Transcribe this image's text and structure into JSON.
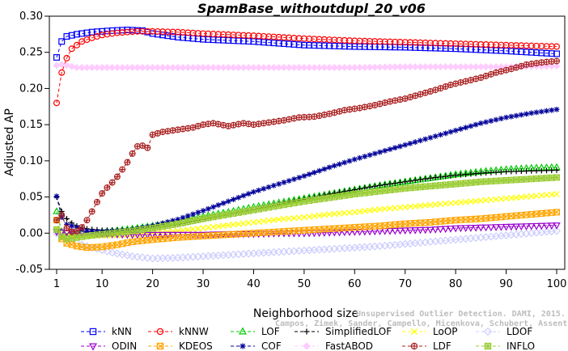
{
  "chart_data": {
    "type": "line",
    "title": "SpamBase_withoutdupl_20_v06",
    "xlabel": "Neighborhood size",
    "ylabel": "Adjusted AP",
    "xlim": [
      1,
      100
    ],
    "ylim": [
      -0.05,
      0.3
    ],
    "xticks": [
      1,
      10,
      20,
      30,
      40,
      50,
      60,
      70,
      80,
      90,
      100
    ],
    "yticks": [
      -0.05,
      0.0,
      0.05,
      0.1,
      0.15,
      0.2,
      0.25,
      0.3
    ],
    "ytick_labels": [
      "-0.05",
      "0.00",
      "0.05",
      "0.10",
      "0.15",
      "0.20",
      "0.25",
      "0.30"
    ],
    "grid": false,
    "legend_position": "bottom",
    "watermark_lines": [
      "Unsupervised Outlier Detection. DAMI, 2015.",
      "Campos, Zimek, Sander, Campello, Micenkova, Schubert, Assent, Houle"
    ],
    "series": [
      {
        "name": "kNN",
        "color": "#0000ff",
        "marker": "square",
        "points": [
          [
            1,
            0.243
          ],
          [
            2,
            0.265
          ],
          [
            3,
            0.272
          ],
          [
            5,
            0.275
          ],
          [
            8,
            0.278
          ],
          [
            12,
            0.28
          ],
          [
            15,
            0.281
          ],
          [
            18,
            0.28
          ],
          [
            20,
            0.276
          ],
          [
            25,
            0.271
          ],
          [
            30,
            0.268
          ],
          [
            40,
            0.265
          ],
          [
            50,
            0.26
          ],
          [
            60,
            0.258
          ],
          [
            70,
            0.257
          ],
          [
            80,
            0.255
          ],
          [
            90,
            0.252
          ],
          [
            100,
            0.248
          ]
        ]
      },
      {
        "name": "kNNW",
        "color": "#ff0000",
        "marker": "circle",
        "points": [
          [
            1,
            0.18
          ],
          [
            2,
            0.222
          ],
          [
            3,
            0.242
          ],
          [
            4,
            0.255
          ],
          [
            6,
            0.265
          ],
          [
            8,
            0.27
          ],
          [
            10,
            0.274
          ],
          [
            13,
            0.277
          ],
          [
            17,
            0.279
          ],
          [
            20,
            0.279
          ],
          [
            25,
            0.278
          ],
          [
            30,
            0.276
          ],
          [
            40,
            0.273
          ],
          [
            50,
            0.269
          ],
          [
            60,
            0.266
          ],
          [
            70,
            0.264
          ],
          [
            80,
            0.262
          ],
          [
            90,
            0.26
          ],
          [
            100,
            0.258
          ]
        ]
      },
      {
        "name": "LOF",
        "color": "#00cc00",
        "marker": "triangle-up",
        "points": [
          [
            1,
            0.03
          ],
          [
            2,
            0.002
          ],
          [
            3,
            -0.005
          ],
          [
            5,
            0.0
          ],
          [
            8,
            0.001
          ],
          [
            12,
            0.003
          ],
          [
            16,
            0.006
          ],
          [
            20,
            0.01
          ],
          [
            25,
            0.016
          ],
          [
            30,
            0.023
          ],
          [
            35,
            0.029
          ],
          [
            40,
            0.036
          ],
          [
            45,
            0.042
          ],
          [
            50,
            0.048
          ],
          [
            55,
            0.054
          ],
          [
            60,
            0.06
          ],
          [
            65,
            0.066
          ],
          [
            70,
            0.071
          ],
          [
            75,
            0.076
          ],
          [
            80,
            0.081
          ],
          [
            85,
            0.085
          ],
          [
            90,
            0.088
          ],
          [
            95,
            0.09
          ],
          [
            100,
            0.091
          ]
        ]
      },
      {
        "name": "SimplifiedLOF",
        "color": "#000000",
        "marker": "plus",
        "points": [
          [
            1,
            0.05
          ],
          [
            2,
            0.03
          ],
          [
            3,
            0.02
          ],
          [
            4,
            0.014
          ],
          [
            5,
            0.01
          ],
          [
            7,
            0.006
          ],
          [
            10,
            0.004
          ],
          [
            15,
            0.004
          ],
          [
            20,
            0.007
          ],
          [
            25,
            0.012
          ],
          [
            30,
            0.019
          ],
          [
            35,
            0.026
          ],
          [
            40,
            0.033
          ],
          [
            45,
            0.04
          ],
          [
            50,
            0.047
          ],
          [
            55,
            0.054
          ],
          [
            60,
            0.06
          ],
          [
            65,
            0.066
          ],
          [
            70,
            0.071
          ],
          [
            75,
            0.076
          ],
          [
            80,
            0.08
          ],
          [
            85,
            0.083
          ],
          [
            90,
            0.085
          ],
          [
            95,
            0.086
          ],
          [
            100,
            0.087
          ]
        ]
      },
      {
        "name": "LoOP",
        "color": "#ffff00",
        "marker": "cross",
        "points": [
          [
            1,
            0.005
          ],
          [
            2,
            0.0
          ],
          [
            3,
            -0.004
          ],
          [
            5,
            -0.005
          ],
          [
            8,
            -0.004
          ],
          [
            12,
            -0.003
          ],
          [
            16,
            -0.002
          ],
          [
            20,
            0.0
          ],
          [
            25,
            0.003
          ],
          [
            30,
            0.007
          ],
          [
            35,
            0.011
          ],
          [
            40,
            0.015
          ],
          [
            45,
            0.019
          ],
          [
            50,
            0.022
          ],
          [
            55,
            0.026
          ],
          [
            60,
            0.029
          ],
          [
            65,
            0.033
          ],
          [
            70,
            0.036
          ],
          [
            75,
            0.039
          ],
          [
            80,
            0.042
          ],
          [
            85,
            0.045
          ],
          [
            90,
            0.048
          ],
          [
            95,
            0.051
          ],
          [
            100,
            0.054
          ]
        ]
      },
      {
        "name": "LDOF",
        "color": "#ccccff",
        "marker": "diamond",
        "points": [
          [
            1,
            0.0
          ],
          [
            3,
            -0.008
          ],
          [
            5,
            -0.014
          ],
          [
            8,
            -0.02
          ],
          [
            12,
            -0.027
          ],
          [
            16,
            -0.032
          ],
          [
            20,
            -0.035
          ],
          [
            25,
            -0.034
          ],
          [
            30,
            -0.032
          ],
          [
            35,
            -0.03
          ],
          [
            40,
            -0.028
          ],
          [
            45,
            -0.026
          ],
          [
            50,
            -0.024
          ],
          [
            55,
            -0.022
          ],
          [
            60,
            -0.02
          ],
          [
            65,
            -0.018
          ],
          [
            70,
            -0.015
          ],
          [
            75,
            -0.012
          ],
          [
            80,
            -0.009
          ],
          [
            85,
            -0.006
          ],
          [
            90,
            -0.003
          ],
          [
            95,
            0.0
          ],
          [
            100,
            0.003
          ]
        ]
      },
      {
        "name": "ODIN",
        "color": "#9900cc",
        "marker": "triangle-down",
        "points": [
          [
            1,
            0.002
          ],
          [
            3,
            0.001
          ],
          [
            6,
            0.0
          ],
          [
            10,
            -0.001
          ],
          [
            15,
            -0.002
          ],
          [
            20,
            -0.002
          ],
          [
            25,
            -0.002
          ],
          [
            30,
            -0.002
          ],
          [
            35,
            -0.001
          ],
          [
            40,
            -0.001
          ],
          [
            45,
            0.0
          ],
          [
            50,
            0.0
          ],
          [
            55,
            0.001
          ],
          [
            60,
            0.002
          ],
          [
            65,
            0.003
          ],
          [
            70,
            0.004
          ],
          [
            75,
            0.005
          ],
          [
            80,
            0.007
          ],
          [
            85,
            0.008
          ],
          [
            90,
            0.009
          ],
          [
            95,
            0.01
          ],
          [
            100,
            0.011
          ]
        ]
      },
      {
        "name": "KDEOS",
        "color": "#ffa500",
        "marker": "boxed-x",
        "points": [
          [
            1,
            0.018
          ],
          [
            2,
            -0.008
          ],
          [
            3,
            -0.014
          ],
          [
            5,
            -0.018
          ],
          [
            7,
            -0.02
          ],
          [
            10,
            -0.019
          ],
          [
            13,
            -0.016
          ],
          [
            16,
            -0.012
          ],
          [
            20,
            -0.009
          ],
          [
            25,
            -0.006
          ],
          [
            30,
            -0.004
          ],
          [
            35,
            -0.002
          ],
          [
            40,
            0.0
          ],
          [
            45,
            0.002
          ],
          [
            50,
            0.004
          ],
          [
            55,
            0.006
          ],
          [
            60,
            0.008
          ],
          [
            65,
            0.01
          ],
          [
            70,
            0.013
          ],
          [
            75,
            0.015
          ],
          [
            80,
            0.018
          ],
          [
            85,
            0.02
          ],
          [
            90,
            0.023
          ],
          [
            95,
            0.026
          ],
          [
            100,
            0.029
          ]
        ]
      },
      {
        "name": "COF",
        "color": "#000099",
        "marker": "asterisk",
        "points": [
          [
            1,
            0.051
          ],
          [
            2,
            0.022
          ],
          [
            3,
            0.012
          ],
          [
            4,
            0.01
          ],
          [
            5,
            0.008
          ],
          [
            7,
            0.003
          ],
          [
            10,
            0.002
          ],
          [
            15,
            0.004
          ],
          [
            20,
            0.01
          ],
          [
            25,
            0.019
          ],
          [
            30,
            0.031
          ],
          [
            35,
            0.044
          ],
          [
            40,
            0.057
          ],
          [
            45,
            0.068
          ],
          [
            50,
            0.079
          ],
          [
            55,
            0.091
          ],
          [
            60,
            0.102
          ],
          [
            65,
            0.112
          ],
          [
            70,
            0.122
          ],
          [
            75,
            0.132
          ],
          [
            80,
            0.142
          ],
          [
            85,
            0.152
          ],
          [
            90,
            0.16
          ],
          [
            95,
            0.166
          ],
          [
            100,
            0.171
          ]
        ]
      },
      {
        "name": "FastABOD",
        "color": "#ffccff",
        "marker": "diamond-filled",
        "points": [
          [
            1,
            0.232
          ],
          [
            2,
            0.233
          ],
          [
            3,
            0.232
          ],
          [
            5,
            0.229
          ],
          [
            10,
            0.229
          ],
          [
            20,
            0.229
          ],
          [
            30,
            0.229
          ],
          [
            40,
            0.229
          ],
          [
            50,
            0.229
          ],
          [
            60,
            0.229
          ],
          [
            70,
            0.23
          ],
          [
            80,
            0.23
          ],
          [
            90,
            0.23
          ],
          [
            100,
            0.231
          ]
        ]
      },
      {
        "name": "LDF",
        "color": "#aa2222",
        "marker": "circle-plus",
        "points": [
          [
            1,
            0.018
          ],
          [
            2,
            0.025
          ],
          [
            3,
            0.007
          ],
          [
            4,
            0.002
          ],
          [
            5,
            0.003
          ],
          [
            6,
            0.008
          ],
          [
            7,
            0.018
          ],
          [
            8,
            0.03
          ],
          [
            9,
            0.043
          ],
          [
            10,
            0.055
          ],
          [
            11,
            0.063
          ],
          [
            12,
            0.07
          ],
          [
            13,
            0.078
          ],
          [
            14,
            0.088
          ],
          [
            15,
            0.098
          ],
          [
            16,
            0.11
          ],
          [
            17,
            0.12
          ],
          [
            18,
            0.121
          ],
          [
            19,
            0.118
          ],
          [
            20,
            0.136
          ],
          [
            22,
            0.14
          ],
          [
            25,
            0.143
          ],
          [
            28,
            0.146
          ],
          [
            30,
            0.15
          ],
          [
            32,
            0.152
          ],
          [
            35,
            0.148
          ],
          [
            38,
            0.152
          ],
          [
            40,
            0.15
          ],
          [
            43,
            0.153
          ],
          [
            46,
            0.156
          ],
          [
            49,
            0.16
          ],
          [
            52,
            0.161
          ],
          [
            55,
            0.165
          ],
          [
            58,
            0.17
          ],
          [
            61,
            0.173
          ],
          [
            64,
            0.177
          ],
          [
            67,
            0.182
          ],
          [
            70,
            0.186
          ],
          [
            73,
            0.192
          ],
          [
            76,
            0.198
          ],
          [
            79,
            0.205
          ],
          [
            82,
            0.21
          ],
          [
            85,
            0.215
          ],
          [
            88,
            0.222
          ],
          [
            91,
            0.227
          ],
          [
            94,
            0.233
          ],
          [
            97,
            0.236
          ],
          [
            100,
            0.238
          ]
        ]
      },
      {
        "name": "INFLO",
        "color": "#99cc33",
        "marker": "boxed-asterisk",
        "points": [
          [
            1,
            0.005
          ],
          [
            2,
            -0.005
          ],
          [
            3,
            -0.008
          ],
          [
            5,
            -0.006
          ],
          [
            8,
            -0.003
          ],
          [
            12,
            0.0
          ],
          [
            16,
            0.003
          ],
          [
            20,
            0.007
          ],
          [
            25,
            0.013
          ],
          [
            30,
            0.02
          ],
          [
            35,
            0.026
          ],
          [
            40,
            0.032
          ],
          [
            45,
            0.038
          ],
          [
            50,
            0.044
          ],
          [
            55,
            0.049
          ],
          [
            60,
            0.054
          ],
          [
            65,
            0.058
          ],
          [
            70,
            0.062
          ],
          [
            75,
            0.065
          ],
          [
            80,
            0.068
          ],
          [
            85,
            0.071
          ],
          [
            90,
            0.073
          ],
          [
            95,
            0.075
          ],
          [
            100,
            0.077
          ]
        ]
      }
    ]
  }
}
